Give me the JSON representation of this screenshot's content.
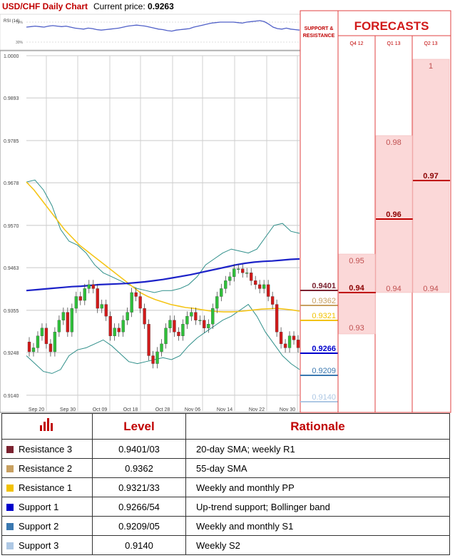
{
  "header": {
    "title": "USD/CHF Daily Chart",
    "price_label": "Current price:",
    "price_value": "0.9263"
  },
  "rsi": {
    "label": "RSI (14)",
    "levels": [
      "70%",
      "30%"
    ],
    "values": [
      60,
      61,
      62,
      61,
      60,
      62,
      63,
      62,
      61,
      62,
      60,
      58,
      57,
      56,
      58,
      57,
      55,
      54,
      55,
      56,
      57,
      58,
      60,
      62,
      63,
      64,
      63,
      62,
      60,
      58,
      56,
      55,
      53,
      52,
      54,
      55,
      56,
      57,
      60,
      62,
      64,
      66,
      68,
      69,
      70,
      70,
      70,
      70,
      69,
      68,
      70,
      71,
      72,
      73,
      71,
      66,
      60,
      57,
      56,
      58,
      56,
      55,
      54
    ]
  },
  "forecast_panel": {
    "title": "FORECASTS",
    "sr_label_1": "SUPPORT &",
    "sr_label_2": "RESISTANCE",
    "columns": [
      "Q4 12",
      "Q1 13",
      "Q2 13"
    ]
  },
  "chart_data": {
    "type": "candlestick",
    "title": "USD/CHF Daily Chart",
    "ylim": [
      0.9118,
      1.0
    ],
    "y_ticks": [
      "1.0000",
      "0.9893",
      "0.9785",
      "0.9678",
      "0.9570",
      "0.9463",
      "0.9355",
      "0.9248",
      "0.9140"
    ],
    "x_ticks": [
      "Sep 20",
      "Sep 30",
      "Oct 09",
      "Oct 18",
      "Oct 28",
      "Nov 06",
      "Nov 14",
      "Nov 22",
      "Nov 30"
    ],
    "closes": [
      0.925,
      0.926,
      0.929,
      0.931,
      0.927,
      0.925,
      0.93,
      0.933,
      0.935,
      0.93,
      0.936,
      0.939,
      0.938,
      0.941,
      0.942,
      0.941,
      0.936,
      0.937,
      0.934,
      0.929,
      0.931,
      0.93,
      0.933,
      0.935,
      0.94,
      0.939,
      0.936,
      0.932,
      0.924,
      0.922,
      0.925,
      0.927,
      0.931,
      0.933,
      0.93,
      0.929,
      0.932,
      0.934,
      0.935,
      0.933,
      0.933,
      0.931,
      0.932,
      0.936,
      0.939,
      0.941,
      0.943,
      0.944,
      0.946,
      0.946,
      0.945,
      0.945,
      0.943,
      0.942,
      0.941,
      0.942,
      0.939,
      0.937,
      0.93,
      0.927,
      0.926,
      0.929,
      0.928,
      0.926
    ],
    "sma20": [
      0.96,
      0.9565,
      0.953,
      0.95,
      0.9475,
      0.945,
      0.9425,
      0.9405,
      0.939,
      0.9375,
      0.9365,
      0.9355,
      0.9348,
      0.934,
      0.9335,
      0.933,
      0.933,
      0.9335,
      0.934,
      0.9345,
      0.935,
      0.9355,
      0.9365,
      0.9375,
      0.939,
      0.9405,
      0.942,
      0.943,
      0.9435,
      0.944,
      0.9445,
      0.945,
      0.9448,
      0.9442,
      0.943,
      0.9418,
      0.9408
    ],
    "sma55": [
      0.968,
      0.966,
      0.9635,
      0.961,
      0.9585,
      0.956,
      0.954,
      0.952,
      0.9505,
      0.949,
      0.9475,
      0.946,
      0.9445,
      0.943,
      0.9415,
      0.94,
      0.939,
      0.9382,
      0.9376,
      0.937,
      0.9366,
      0.9362,
      0.936,
      0.9357,
      0.9354,
      0.9352,
      0.9351,
      0.9351,
      0.9352,
      0.9354,
      0.9356,
      0.9358,
      0.9359,
      0.936,
      0.9358,
      0.9356,
      0.9353
    ],
    "sma200": [
      0.9405,
      0.9407,
      0.9409,
      0.9411,
      0.9413,
      0.9415,
      0.9416,
      0.9418,
      0.942,
      0.9421,
      0.9422,
      0.9423,
      0.9425,
      0.9427,
      0.943,
      0.9433,
      0.9437,
      0.9441,
      0.9445,
      0.945,
      0.9455,
      0.946,
      0.9465,
      0.947,
      0.9474,
      0.9477,
      0.9479,
      0.948,
      0.9482,
      0.9484,
      0.9485
    ],
    "bb_upper": [
      0.968,
      0.9685,
      0.966,
      0.962,
      0.956,
      0.953,
      0.952,
      0.95,
      0.947,
      0.945,
      0.944,
      0.943,
      0.942,
      0.941,
      0.9405,
      0.94,
      0.9405,
      0.9405,
      0.941,
      0.942,
      0.944,
      0.947,
      0.9485,
      0.95,
      0.951,
      0.9505,
      0.95,
      0.951,
      0.954,
      0.957,
      0.9575,
      0.9555,
      0.955
    ],
    "bb_lower": [
      0.924,
      0.922,
      0.92,
      0.9195,
      0.9205,
      0.924,
      0.9255,
      0.926,
      0.927,
      0.928,
      0.9265,
      0.9245,
      0.9225,
      0.922,
      0.9225,
      0.923,
      0.9235,
      0.923,
      0.924,
      0.9265,
      0.9285,
      0.93,
      0.9315,
      0.933,
      0.934,
      0.9355,
      0.937,
      0.934,
      0.93,
      0.927,
      0.924,
      0.922,
      0.9205
    ],
    "support_resistance": [
      {
        "label": "0.9401",
        "color": "#7b2230"
      },
      {
        "label": "0.9362",
        "color": "#c8a060"
      },
      {
        "label": "0.9321",
        "color": "#f2c200"
      },
      {
        "label": "0.9266",
        "color": "#0000cc"
      },
      {
        "label": "0.9209",
        "color": "#3a78b0"
      },
      {
        "label": "0.9140",
        "color": "#aec8e4"
      }
    ],
    "forecasts": {
      "Q4 12": {
        "high": "0.95",
        "median": "0.94",
        "low": "0.93"
      },
      "Q1 13": {
        "high": "0.98",
        "median": "0.96",
        "low": "0.94"
      },
      "Q2 13": {
        "high": "1",
        "median": "0.97",
        "low": "0.94"
      }
    }
  },
  "table": {
    "headers": {
      "level": "Level",
      "rationale": "Rationale"
    },
    "rows": [
      {
        "name": "Resistance 3",
        "level": "0.9401/03",
        "rationale": "20-day SMA; weekly R1",
        "color": "#7b2230"
      },
      {
        "name": "Resistance 2",
        "level": "0.9362",
        "rationale": "55-day SMA",
        "color": "#c8a060"
      },
      {
        "name": "Resistance 1",
        "level": "0.9321/33",
        "rationale": "Weekly and monthly PP",
        "color": "#f2c200"
      },
      {
        "name": "Support 1",
        "level": "0.9266/54",
        "rationale": "Up-trend support; Bollinger band",
        "color": "#0000cc"
      },
      {
        "name": "Support 2",
        "level": "0.9209/05",
        "rationale": "Weekly and monthly S1",
        "color": "#3a78b0"
      },
      {
        "name": "Support 3",
        "level": "0.9140",
        "rationale": "Weekly S2",
        "color": "#aec8e4"
      }
    ]
  }
}
